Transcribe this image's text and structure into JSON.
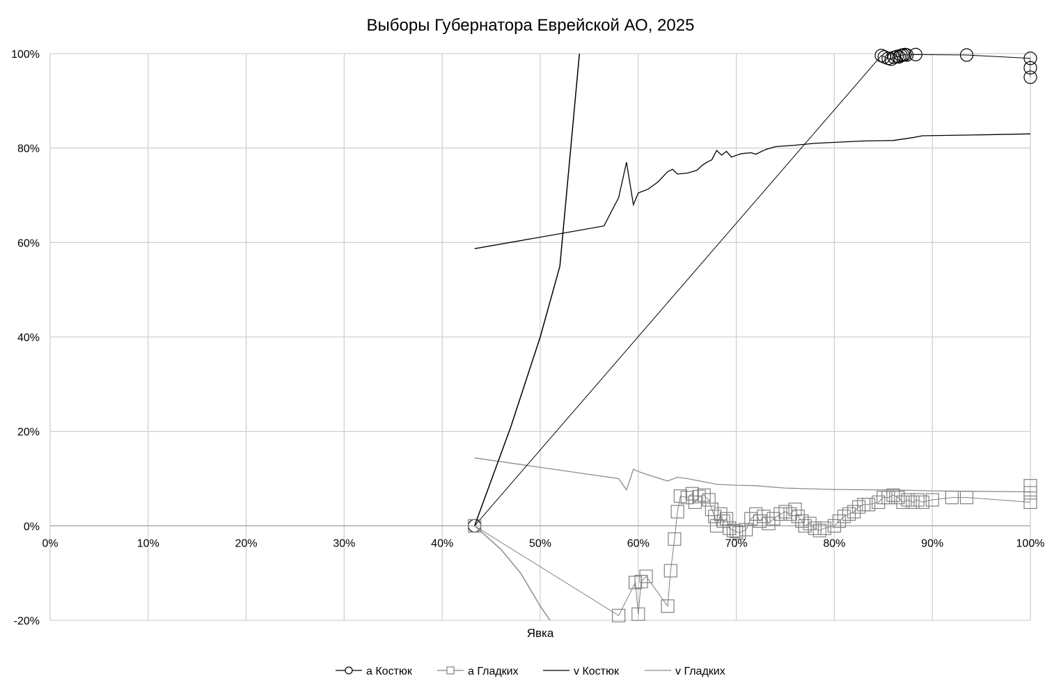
{
  "chart_data": {
    "type": "scatter",
    "title": "Выборы Губернатора Еврейской АО, 2025",
    "xlabel": "Явка",
    "ylabel": "",
    "xlim": [
      0,
      1
    ],
    "ylim": [
      -0.2,
      1
    ],
    "grid": true,
    "legend_position": "bottom",
    "x_ticks": [
      0,
      0.1,
      0.2,
      0.3,
      0.4,
      0.5,
      0.6,
      0.7,
      0.8,
      0.9,
      1.0
    ],
    "x_tick_labels": [
      "0%",
      "10%",
      "20%",
      "30%",
      "40%",
      "50%",
      "60%",
      "70%",
      "80%",
      "90%",
      "100%"
    ],
    "y_ticks": [
      -0.2,
      0,
      0.2,
      0.4,
      0.6,
      0.8,
      1.0
    ],
    "y_tick_labels": [
      "-20%",
      "0%",
      "20%",
      "40%",
      "60%",
      "80%",
      "100%"
    ],
    "series": [
      {
        "name": "a Костюк",
        "style": "line-circle",
        "color": "#000000",
        "points": [
          [
            0.433,
            0.0
          ],
          [
            0.848,
            0.996
          ],
          [
            0.851,
            0.993
          ],
          [
            0.855,
            0.99
          ],
          [
            0.858,
            0.988
          ],
          [
            0.861,
            0.992
          ],
          [
            0.864,
            0.994
          ],
          [
            0.866,
            0.993
          ],
          [
            0.868,
            0.996
          ],
          [
            0.87,
            0.997
          ],
          [
            0.872,
            0.998
          ],
          [
            0.874,
            0.997
          ],
          [
            0.883,
            0.998
          ],
          [
            0.935,
            0.997
          ],
          [
            1.0,
            0.99
          ],
          [
            1.0,
            0.97
          ],
          [
            1.0,
            0.95
          ]
        ]
      },
      {
        "name": "a Гладких",
        "style": "line-square",
        "color": "#808080",
        "points": [
          [
            0.433,
            0.0
          ],
          [
            0.58,
            -0.19
          ],
          [
            0.597,
            -0.12
          ],
          [
            0.6,
            -0.187
          ],
          [
            0.603,
            -0.118
          ],
          [
            0.608,
            -0.107
          ],
          [
            0.63,
            -0.17
          ],
          [
            0.633,
            -0.095
          ],
          [
            0.637,
            -0.028
          ],
          [
            0.64,
            0.03
          ],
          [
            0.643,
            0.063
          ],
          [
            0.65,
            0.06
          ],
          [
            0.655,
            0.068
          ],
          [
            0.658,
            0.05
          ],
          [
            0.662,
            0.062
          ],
          [
            0.667,
            0.065
          ],
          [
            0.672,
            0.055
          ],
          [
            0.675,
            0.035
          ],
          [
            0.678,
            0.02
          ],
          [
            0.68,
            0.0
          ],
          [
            0.684,
            0.025
          ],
          [
            0.687,
            0.01
          ],
          [
            0.69,
            0.015
          ],
          [
            0.693,
            -0.005
          ],
          [
            0.697,
            -0.01
          ],
          [
            0.7,
            -0.012
          ],
          [
            0.703,
            -0.015
          ],
          [
            0.71,
            -0.008
          ],
          [
            0.715,
            0.015
          ],
          [
            0.72,
            0.025
          ],
          [
            0.724,
            0.01
          ],
          [
            0.728,
            0.02
          ],
          [
            0.733,
            0.005
          ],
          [
            0.738,
            0.015
          ],
          [
            0.745,
            0.025
          ],
          [
            0.75,
            0.03
          ],
          [
            0.755,
            0.025
          ],
          [
            0.76,
            0.035
          ],
          [
            0.763,
            0.02
          ],
          [
            0.767,
            0.01
          ],
          [
            0.77,
            0.0
          ],
          [
            0.775,
            0.005
          ],
          [
            0.78,
            -0.005
          ],
          [
            0.785,
            -0.01
          ],
          [
            0.79,
            -0.005
          ],
          [
            0.8,
            0.0
          ],
          [
            0.805,
            0.01
          ],
          [
            0.81,
            0.02
          ],
          [
            0.815,
            0.025
          ],
          [
            0.82,
            0.03
          ],
          [
            0.825,
            0.04
          ],
          [
            0.83,
            0.045
          ],
          [
            0.835,
            0.045
          ],
          [
            0.845,
            0.05
          ],
          [
            0.85,
            0.06
          ],
          [
            0.855,
            0.06
          ],
          [
            0.86,
            0.065
          ],
          [
            0.865,
            0.06
          ],
          [
            0.87,
            0.05
          ],
          [
            0.875,
            0.055
          ],
          [
            0.88,
            0.05
          ],
          [
            0.885,
            0.055
          ],
          [
            0.89,
            0.05
          ],
          [
            0.9,
            0.055
          ],
          [
            0.92,
            0.06
          ],
          [
            0.935,
            0.06
          ],
          [
            1.0,
            0.05
          ],
          [
            1.0,
            0.07
          ],
          [
            1.0,
            0.085
          ]
        ]
      },
      {
        "name": "v Костюк",
        "style": "line",
        "color": "#000000",
        "points": [
          [
            0.433,
            0.0
          ],
          [
            0.47,
            0.21
          ],
          [
            0.5,
            0.4
          ],
          [
            0.52,
            0.55
          ],
          [
            0.54,
            1.0
          ]
        ]
      },
      {
        "name": "v Гладких",
        "style": "line",
        "color": "#8c8c8c",
        "points": [
          [
            0.433,
            0.0
          ],
          [
            0.46,
            -0.05
          ],
          [
            0.48,
            -0.1
          ],
          [
            0.5,
            -0.17
          ],
          [
            0.51,
            -0.2
          ]
        ]
      }
    ],
    "cumulative_lines": [
      {
        "name": "Костюк",
        "color": "#000000",
        "points": [
          [
            0.433,
            0.587
          ],
          [
            0.565,
            0.635
          ],
          [
            0.58,
            0.695
          ],
          [
            0.588,
            0.77
          ],
          [
            0.595,
            0.68
          ],
          [
            0.6,
            0.705
          ],
          [
            0.61,
            0.713
          ],
          [
            0.62,
            0.728
          ],
          [
            0.63,
            0.75
          ],
          [
            0.635,
            0.755
          ],
          [
            0.64,
            0.745
          ],
          [
            0.65,
            0.747
          ],
          [
            0.655,
            0.75
          ],
          [
            0.66,
            0.753
          ],
          [
            0.665,
            0.763
          ],
          [
            0.67,
            0.77
          ],
          [
            0.675,
            0.775
          ],
          [
            0.68,
            0.795
          ],
          [
            0.685,
            0.785
          ],
          [
            0.69,
            0.793
          ],
          [
            0.695,
            0.781
          ],
          [
            0.705,
            0.788
          ],
          [
            0.715,
            0.79
          ],
          [
            0.72,
            0.787
          ],
          [
            0.73,
            0.797
          ],
          [
            0.74,
            0.803
          ],
          [
            0.76,
            0.806
          ],
          [
            0.78,
            0.81
          ],
          [
            0.8,
            0.812
          ],
          [
            0.83,
            0.815
          ],
          [
            0.86,
            0.816
          ],
          [
            0.88,
            0.822
          ],
          [
            0.89,
            0.826
          ],
          [
            0.95,
            0.828
          ],
          [
            1.0,
            0.83
          ]
        ]
      },
      {
        "name": "Гладких",
        "color": "#8c8c8c",
        "points": [
          [
            0.433,
            0.144
          ],
          [
            0.58,
            0.1
          ],
          [
            0.588,
            0.076
          ],
          [
            0.595,
            0.12
          ],
          [
            0.6,
            0.115
          ],
          [
            0.61,
            0.108
          ],
          [
            0.63,
            0.095
          ],
          [
            0.64,
            0.103
          ],
          [
            0.65,
            0.1
          ],
          [
            0.67,
            0.092
          ],
          [
            0.68,
            0.088
          ],
          [
            0.7,
            0.086
          ],
          [
            0.72,
            0.085
          ],
          [
            0.75,
            0.08
          ],
          [
            0.8,
            0.077
          ],
          [
            0.86,
            0.076
          ],
          [
            0.9,
            0.074
          ],
          [
            1.0,
            0.072
          ]
        ]
      }
    ]
  }
}
